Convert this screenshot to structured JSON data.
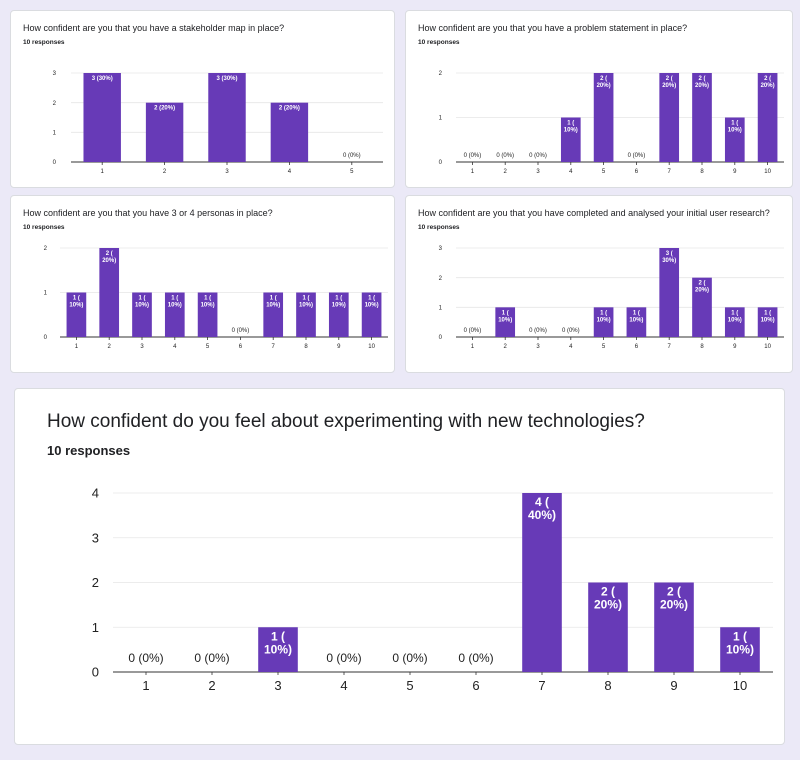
{
  "theme": {
    "bar_color": "#673ab7",
    "grid_color": "#e6e6e6",
    "axis_color": "#333333",
    "page_bg": "#ebe9f7"
  },
  "cards": [
    {
      "title": "How confident are you that you have a stakeholder map in place?",
      "responses": "10 responses"
    },
    {
      "title": "How confident are you that you have a problem statement in place?",
      "responses": "10 responses"
    },
    {
      "title": "How confident are you that you have 3 or 4 personas in place?",
      "responses": "10 responses"
    },
    {
      "title": "How confident are you that you have completed and analysed your initial user research?",
      "responses": "10 responses"
    },
    {
      "title": "How confident do you feel about experimenting with new technologies?",
      "responses": "10 responses"
    }
  ],
  "chart_data": [
    {
      "type": "bar",
      "title": "How confident are you that you have a stakeholder map in place?",
      "categories": [
        "1",
        "2",
        "3",
        "4",
        "5"
      ],
      "values": [
        3,
        2,
        3,
        2,
        0
      ],
      "labels": [
        "3 (30%)",
        "2 (20%)",
        "3 (30%)",
        "2 (20%)",
        "0 (0%)"
      ],
      "yticks": [
        "0",
        "1",
        "2",
        "3"
      ],
      "ylim": [
        0,
        3
      ]
    },
    {
      "type": "bar",
      "title": "How confident are you that you have a problem statement in place?",
      "categories": [
        "1",
        "2",
        "3",
        "4",
        "5",
        "6",
        "7",
        "8",
        "9",
        "10"
      ],
      "values": [
        0,
        0,
        0,
        1,
        2,
        0,
        2,
        2,
        1,
        2
      ],
      "labels": [
        "0 (0%)",
        "0 (0%)",
        "0 (0%)",
        "1 (\n10%)",
        "2 (\n20%)",
        "0 (0%)",
        "2 (\n20%)",
        "2 (\n20%)",
        "1 (\n10%)",
        "2 (\n20%)"
      ],
      "yticks": [
        "0",
        "1",
        "2"
      ],
      "ylim": [
        0,
        2
      ]
    },
    {
      "type": "bar",
      "title": "How confident are you that you have 3 or 4 personas in place?",
      "categories": [
        "1",
        "2",
        "3",
        "4",
        "5",
        "6",
        "7",
        "8",
        "9",
        "10"
      ],
      "values": [
        1,
        2,
        1,
        1,
        1,
        0,
        1,
        1,
        1,
        1
      ],
      "labels": [
        "1 (\n10%)",
        "2 (\n20%)",
        "1 (\n10%)",
        "1 (\n10%)",
        "1 (\n10%)",
        "0 (0%)",
        "1 (\n10%)",
        "1 (\n10%)",
        "1 (\n10%)",
        "1 (\n10%)"
      ],
      "yticks": [
        "0",
        "1",
        "2"
      ],
      "ylim": [
        0,
        2
      ]
    },
    {
      "type": "bar",
      "title": "How confident are you that you have completed and analysed your initial user research?",
      "categories": [
        "1",
        "2",
        "3",
        "4",
        "5",
        "6",
        "7",
        "8",
        "9",
        "10"
      ],
      "values": [
        0,
        1,
        0,
        0,
        1,
        1,
        3,
        2,
        1,
        1
      ],
      "labels": [
        "0 (0%)",
        "1 (\n10%)",
        "0 (0%)",
        "0 (0%)",
        "1 (\n10%)",
        "1 (\n10%)",
        "3 (\n30%)",
        "2 (\n20%)",
        "1 (\n10%)",
        "1 (\n10%)"
      ],
      "yticks": [
        "0",
        "1",
        "2",
        "3"
      ],
      "ylim": [
        0,
        3
      ]
    },
    {
      "type": "bar",
      "title": "How confident do you feel about experimenting with new technologies?",
      "categories": [
        "1",
        "2",
        "3",
        "4",
        "5",
        "6",
        "7",
        "8",
        "9",
        "10"
      ],
      "values": [
        0,
        0,
        1,
        0,
        0,
        0,
        4,
        2,
        2,
        1
      ],
      "labels": [
        "0 (0%)",
        "0 (0%)",
        "1 (\n10%)",
        "0 (0%)",
        "0 (0%)",
        "0 (0%)",
        "4 (\n40%)",
        "2 (\n20%)",
        "2 (\n20%)",
        "1 (\n10%)"
      ],
      "yticks": [
        "0",
        "1",
        "2",
        "3",
        "4"
      ],
      "ylim": [
        0,
        4
      ]
    }
  ]
}
